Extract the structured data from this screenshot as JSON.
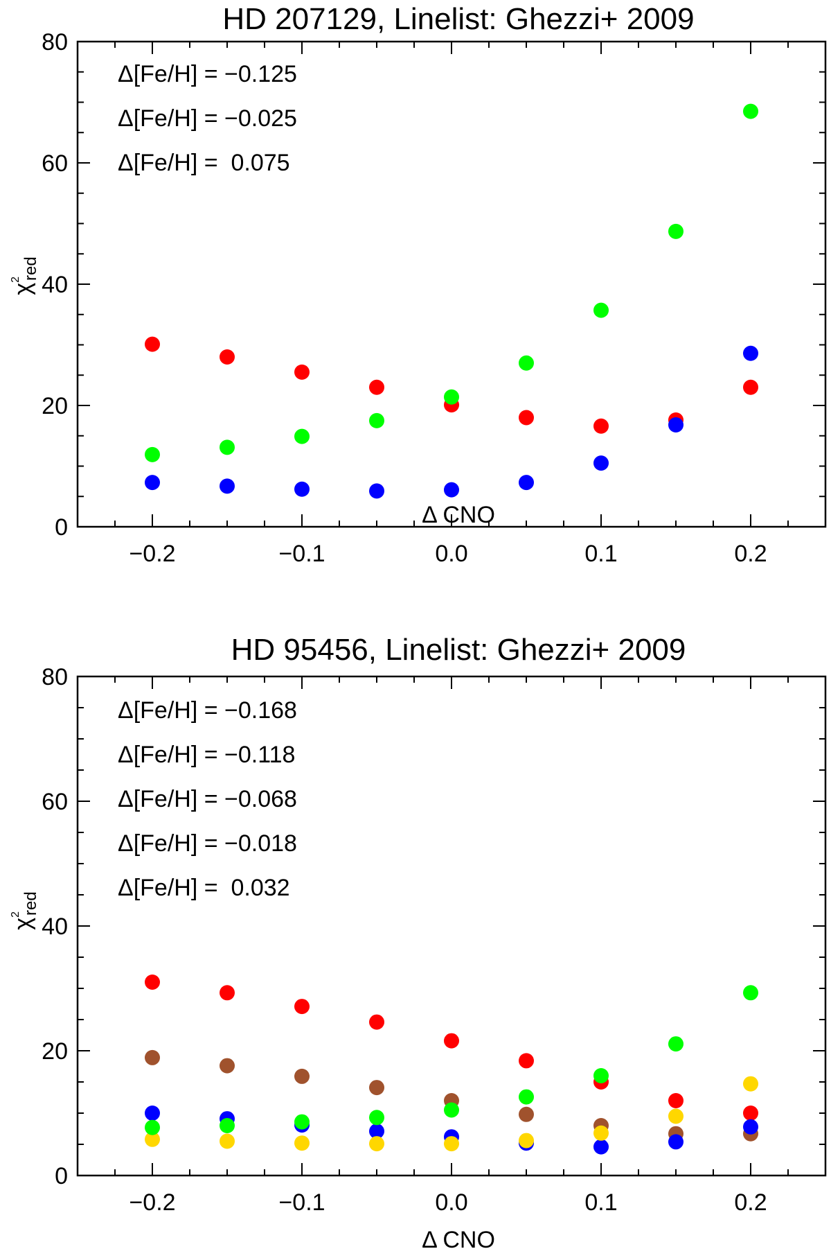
{
  "chart_data": [
    {
      "type": "scatter",
      "title": "HD 207129, Linelist: Ghezzi+ 2009",
      "xlabel": "Δ CNO",
      "ylabel": "χ",
      "ylabel_sup": "2",
      "ylabel_sub": "red",
      "xlim": [
        -0.25,
        0.25
      ],
      "ylim": [
        0,
        80
      ],
      "xticks": [
        -0.2,
        -0.1,
        0.0,
        0.1,
        0.2
      ],
      "xtick_labels": [
        "−0.2",
        "−0.1",
        "0.0",
        "0.1",
        "0.2"
      ],
      "yticks": [
        0,
        20,
        40,
        60,
        80
      ],
      "ytick_labels": [
        "0",
        "20",
        "40",
        "60",
        "80"
      ],
      "x": [
        -0.2,
        -0.15,
        -0.1,
        -0.05,
        0.0,
        0.05,
        0.1,
        0.15,
        0.2
      ],
      "legend_position": "top-left",
      "series": [
        {
          "name": "Δ[Fe/H] = −0.125",
          "color": "#ff0000",
          "values": [
            30.1,
            28.0,
            25.5,
            23.0,
            20.1,
            18.0,
            16.6,
            17.6,
            23.0
          ]
        },
        {
          "name": "Δ[Fe/H] = −0.025",
          "color": "#0000ff",
          "values": [
            7.3,
            6.7,
            6.2,
            5.9,
            6.1,
            7.3,
            10.5,
            16.8,
            28.6
          ]
        },
        {
          "name": "Δ[Fe/H] =  0.075",
          "color": "#00ff00",
          "values": [
            11.9,
            13.1,
            14.9,
            17.5,
            21.4,
            27.0,
            35.7,
            48.7,
            68.5
          ]
        }
      ]
    },
    {
      "type": "scatter",
      "title": "HD 95456, Linelist: Ghezzi+ 2009",
      "xlabel": "Δ CNO",
      "ylabel": "χ",
      "ylabel_sup": "2",
      "ylabel_sub": "red",
      "xlim": [
        -0.25,
        0.25
      ],
      "ylim": [
        0,
        80
      ],
      "xticks": [
        -0.2,
        -0.1,
        0.0,
        0.1,
        0.2
      ],
      "xtick_labels": [
        "−0.2",
        "−0.1",
        "0.0",
        "0.1",
        "0.2"
      ],
      "yticks": [
        0,
        20,
        40,
        60,
        80
      ],
      "ytick_labels": [
        "0",
        "20",
        "40",
        "60",
        "80"
      ],
      "x": [
        -0.2,
        -0.15,
        -0.1,
        -0.05,
        0.0,
        0.05,
        0.1,
        0.15,
        0.2
      ],
      "legend_position": "top-left",
      "series": [
        {
          "name": "Δ[Fe/H] = −0.168",
          "color": "#ff0000",
          "values": [
            31.0,
            29.3,
            27.1,
            24.6,
            21.6,
            18.4,
            15.0,
            12.0,
            10.0
          ]
        },
        {
          "name": "Δ[Fe/H] = −0.118",
          "color": "#a0522d",
          "values": [
            18.9,
            17.6,
            15.9,
            14.1,
            12.0,
            9.8,
            8.0,
            6.7,
            6.7
          ]
        },
        {
          "name": "Δ[Fe/H] = −0.068",
          "color": "#0000ff",
          "values": [
            10.0,
            9.1,
            8.1,
            7.1,
            6.2,
            5.2,
            4.6,
            5.4,
            7.8
          ]
        },
        {
          "name": "Δ[Fe/H] = −0.018",
          "color": "#ffd700",
          "values": [
            5.8,
            5.5,
            5.2,
            5.1,
            5.1,
            5.6,
            6.8,
            9.5,
            14.7
          ]
        },
        {
          "name": "Δ[Fe/H] =  0.032",
          "color": "#00ff00",
          "values": [
            7.7,
            8.0,
            8.6,
            9.3,
            10.5,
            12.6,
            16.0,
            21.1,
            29.3
          ]
        }
      ]
    }
  ]
}
